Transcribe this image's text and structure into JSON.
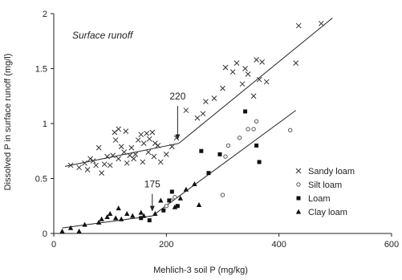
{
  "chart_data": {
    "type": "scatter",
    "title": "Surface runoff",
    "xlabel": "Mehlich-3 soil P (mg/kg)",
    "ylabel": "Dissolved P in surface runoff (mg/l)",
    "xlim": [
      0,
      600
    ],
    "ylim": [
      0,
      2
    ],
    "x_ticks": [
      0,
      200,
      400,
      600
    ],
    "y_ticks": [
      0,
      0.5,
      1,
      1.5,
      2
    ],
    "x_tick_labels": [
      "0",
      "200",
      "400",
      "600"
    ],
    "y_tick_labels": [
      "0",
      "0.5",
      "1",
      "1.5",
      "2"
    ],
    "grid": false,
    "legend_position": "right",
    "series": [
      {
        "name": "Sandy loam",
        "marker": "x",
        "points": [
          [
            30,
            0.62
          ],
          [
            45,
            0.6
          ],
          [
            55,
            0.64
          ],
          [
            60,
            0.58
          ],
          [
            65,
            0.68
          ],
          [
            70,
            0.66
          ],
          [
            75,
            0.62
          ],
          [
            80,
            0.78
          ],
          [
            85,
            0.55
          ],
          [
            90,
            0.63
          ],
          [
            95,
            0.7
          ],
          [
            100,
            0.62
          ],
          [
            105,
            0.71
          ],
          [
            108,
            0.92
          ],
          [
            110,
            0.85
          ],
          [
            115,
            0.95
          ],
          [
            115,
            0.68
          ],
          [
            120,
            0.79
          ],
          [
            125,
            0.74
          ],
          [
            128,
            0.93
          ],
          [
            130,
            0.64
          ],
          [
            135,
            0.71
          ],
          [
            138,
            0.78
          ],
          [
            142,
            0.68
          ],
          [
            145,
            0.72
          ],
          [
            150,
            0.85
          ],
          [
            155,
            0.9
          ],
          [
            158,
            0.65
          ],
          [
            160,
            0.82
          ],
          [
            165,
            0.91
          ],
          [
            168,
            0.74
          ],
          [
            170,
            0.86
          ],
          [
            175,
            0.92
          ],
          [
            178,
            0.7
          ],
          [
            180,
            0.82
          ],
          [
            185,
            0.8
          ],
          [
            190,
            0.65
          ],
          [
            200,
            0.72
          ],
          [
            210,
            0.79
          ],
          [
            218,
            0.87
          ],
          [
            235,
            1.12
          ],
          [
            255,
            1.05
          ],
          [
            265,
            1.09
          ],
          [
            270,
            1.2
          ],
          [
            285,
            1.23
          ],
          [
            300,
            1.32
          ],
          [
            305,
            1.51
          ],
          [
            318,
            1.47
          ],
          [
            325,
            1.55
          ],
          [
            335,
            1.36
          ],
          [
            340,
            1.5
          ],
          [
            345,
            1.45
          ],
          [
            355,
            1.25
          ],
          [
            360,
            1.58
          ],
          [
            365,
            1.4
          ],
          [
            370,
            1.56
          ],
          [
            378,
            1.38
          ],
          [
            430,
            1.55
          ],
          [
            435,
            1.89
          ],
          [
            475,
            1.91
          ]
        ]
      },
      {
        "name": "Silt loam",
        "marker": "circle",
        "points": [
          [
            200,
            0.25
          ],
          [
            208,
            0.3
          ],
          [
            215,
            0.33
          ],
          [
            300,
            0.35
          ],
          [
            305,
            0.7
          ],
          [
            310,
            0.8
          ],
          [
            330,
            0.87
          ],
          [
            345,
            0.95
          ],
          [
            355,
            0.95
          ],
          [
            360,
            1.02
          ],
          [
            420,
            0.94
          ]
        ]
      },
      {
        "name": "Loam",
        "marker": "square",
        "points": [
          [
            155,
            0.14
          ],
          [
            170,
            0.12
          ],
          [
            195,
            0.21
          ],
          [
            205,
            0.3
          ],
          [
            210,
            0.38
          ],
          [
            220,
            0.25
          ],
          [
            262,
            0.75
          ],
          [
            275,
            0.55
          ],
          [
            295,
            0.72
          ],
          [
            340,
            1.11
          ],
          [
            360,
            0.8
          ],
          [
            365,
            0.65
          ]
        ]
      },
      {
        "name": "Clay loam",
        "marker": "triangle",
        "points": [
          [
            15,
            0.02
          ],
          [
            30,
            0.05
          ],
          [
            45,
            0.02
          ],
          [
            55,
            0.08
          ],
          [
            80,
            0.1
          ],
          [
            85,
            0.13
          ],
          [
            95,
            0.15
          ],
          [
            100,
            0.18
          ],
          [
            110,
            0.14
          ],
          [
            115,
            0.23
          ],
          [
            120,
            0.13
          ],
          [
            130,
            0.18
          ],
          [
            140,
            0.16
          ],
          [
            155,
            0.19
          ],
          [
            160,
            0.16
          ],
          [
            180,
            0.18
          ],
          [
            190,
            0.3
          ],
          [
            215,
            0.24
          ],
          [
            225,
            0.32
          ],
          [
            235,
            0.4
          ],
          [
            250,
            0.45
          ],
          [
            258,
            0.26
          ]
        ]
      }
    ],
    "fit_lines": [
      {
        "points": [
          [
            20,
            0.61
          ],
          [
            222,
            0.82
          ],
          [
            495,
            1.96
          ]
        ]
      },
      {
        "points": [
          [
            15,
            0.05
          ],
          [
            175,
            0.16
          ],
          [
            430,
            1.12
          ]
        ]
      }
    ],
    "annotations": [
      {
        "text": "220",
        "x": 220,
        "y_text": 1.22,
        "arrow_from": 1.16,
        "arrow_to": 0.85
      },
      {
        "text": "175",
        "x": 175,
        "y_text": 0.42,
        "arrow_from": 0.36,
        "arrow_to": 0.2
      }
    ]
  }
}
